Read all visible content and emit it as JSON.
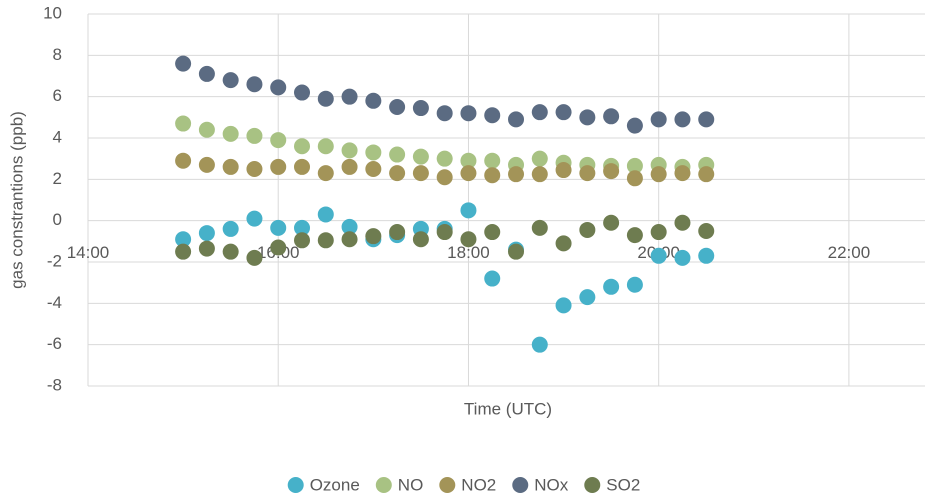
{
  "chart_data": {
    "type": "scatter",
    "x_label": "Time (UTC)",
    "y_label": "gas constrantions (ppb)",
    "xlim": [
      14,
      22.8
    ],
    "xticks": [
      {
        "value": 14,
        "label": "14:00"
      },
      {
        "value": 16,
        "label": "16:00"
      },
      {
        "value": 18,
        "label": "18:00"
      },
      {
        "value": 20,
        "label": "20:00"
      },
      {
        "value": 22,
        "label": "22:00"
      }
    ],
    "ylim": [
      -8,
      10
    ],
    "yticks": [
      -8,
      -6,
      -4,
      -2,
      0,
      2,
      4,
      6,
      8,
      10
    ],
    "grid": true,
    "legend": "bottom",
    "x": [
      15,
      15.25,
      15.5,
      15.75,
      16,
      16.25,
      16.5,
      16.75,
      17,
      17.25,
      17.5,
      17.75,
      18,
      18.25,
      18.5,
      18.75,
      19,
      19.25,
      19.5,
      19.75,
      20,
      20.25,
      20.5
    ],
    "series": [
      {
        "name": "Ozone",
        "color": "#46b1c9",
        "values": [
          -0.9,
          -0.6,
          -0.4,
          0.1,
          -0.35,
          -0.35,
          0.3,
          -0.3,
          -0.9,
          -0.7,
          -0.4,
          -0.4,
          0.5,
          -2.8,
          -1.4,
          -6.0,
          -4.1,
          -3.7,
          -3.2,
          -3.1,
          -1.7,
          -1.8,
          -1.7
        ]
      },
      {
        "name": "NO",
        "color": "#a8c283",
        "values": [
          4.7,
          4.4,
          4.2,
          4.1,
          3.9,
          3.6,
          3.6,
          3.4,
          3.3,
          3.2,
          3.1,
          3.0,
          2.9,
          2.9,
          2.7,
          3.0,
          2.8,
          2.7,
          2.65,
          2.65,
          2.7,
          2.6,
          2.7
        ]
      },
      {
        "name": "NO2",
        "color": "#a39458",
        "values": [
          2.9,
          2.7,
          2.6,
          2.5,
          2.6,
          2.6,
          2.3,
          2.6,
          2.5,
          2.3,
          2.3,
          2.1,
          2.3,
          2.2,
          2.25,
          2.25,
          2.45,
          2.3,
          2.4,
          2.05,
          2.25,
          2.3,
          2.25
        ]
      },
      {
        "name": "NOx",
        "color": "#5b6b82",
        "values": [
          7.6,
          7.1,
          6.8,
          6.6,
          6.45,
          6.2,
          5.9,
          6.0,
          5.8,
          5.5,
          5.45,
          5.2,
          5.2,
          5.1,
          4.9,
          5.25,
          5.25,
          5.0,
          5.05,
          4.6,
          4.9,
          4.9,
          4.9
        ]
      },
      {
        "name": "SO2",
        "color": "#6e7c50",
        "values": [
          -1.5,
          -1.35,
          -1.5,
          -1.8,
          -1.3,
          -0.95,
          -0.95,
          -0.9,
          -0.75,
          -0.55,
          -0.9,
          -0.55,
          -0.9,
          -0.55,
          -1.5,
          -0.35,
          -1.1,
          -0.45,
          -0.1,
          -0.7,
          -0.55,
          -0.1,
          -0.5
        ]
      }
    ]
  }
}
